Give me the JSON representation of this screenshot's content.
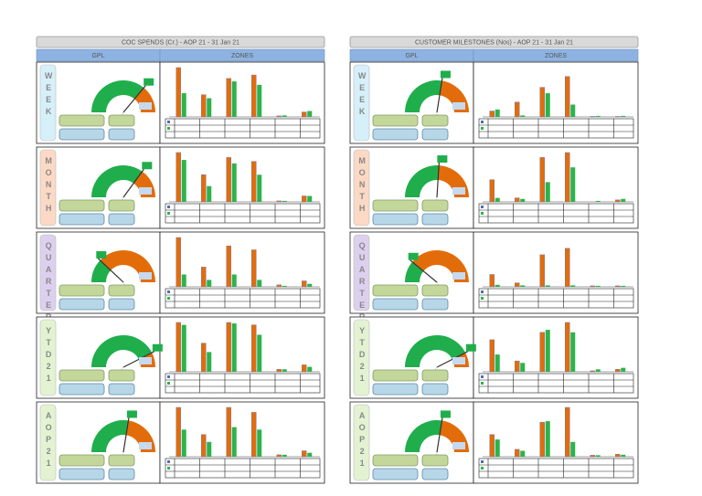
{
  "panels": [
    {
      "title": "COC SPENDS (Cr.) - AOP 21 - 31 Jan 21",
      "headers": [
        "GPL",
        "ZONES"
      ],
      "rows": [
        {
          "label": "WEEK",
          "label_color": "#d6f0fa",
          "gauge": {
            "type": "gauge",
            "value": 72,
            "ylim": [
              0,
              100
            ]
          },
          "zones": {
            "type": "bar",
            "ylim": [
              0,
              100
            ],
            "series": [
              {
                "color": "#e36c0a",
                "values": [
                  100,
                  45,
                  78,
                  85,
                  2,
                  10
                ]
              },
              {
                "color": "#2db34a",
                "values": [
                  48,
                  38,
                  72,
                  65,
                  3,
                  12
                ]
              }
            ]
          }
        },
        {
          "label": "MONTH",
          "label_color": "#fbd9c4",
          "gauge": {
            "type": "gauge",
            "value": 70,
            "ylim": [
              0,
              100
            ]
          },
          "zones": {
            "type": "bar",
            "ylim": [
              0,
              100
            ],
            "series": [
              {
                "color": "#e36c0a",
                "values": [
                  100,
                  55,
                  90,
                  82,
                  2,
                  12
                ]
              },
              {
                "color": "#2db34a",
                "values": [
                  85,
                  32,
                  78,
                  55,
                  2,
                  12
                ]
              }
            ]
          }
        },
        {
          "label": "QUARTER",
          "label_color": "#ddd0ee",
          "gauge": {
            "type": "gauge",
            "value": 24,
            "ylim": [
              0,
              100
            ]
          },
          "zones": {
            "type": "bar",
            "ylim": [
              0,
              100
            ],
            "series": [
              {
                "color": "#e36c0a",
                "values": [
                  100,
                  40,
                  83,
                  75,
                  4,
                  12
                ]
              },
              {
                "color": "#2db34a",
                "values": [
                  25,
                  14,
                  25,
                  14,
                  2,
                  6
                ]
              }
            ]
          }
        },
        {
          "label": "YTD21",
          "label_color": "#e3f3d2",
          "gauge": {
            "type": "gauge",
            "value": 85,
            "ylim": [
              0,
              100
            ]
          },
          "zones": {
            "type": "bar",
            "ylim": [
              0,
              100
            ],
            "series": [
              {
                "color": "#e36c0a",
                "values": [
                  100,
                  58,
                  100,
                  95,
                  5,
                  14
                ]
              },
              {
                "color": "#2db34a",
                "values": [
                  95,
                  40,
                  98,
                  75,
                  5,
                  10
                ]
              }
            ]
          }
        },
        {
          "label": "AOP21",
          "label_color": "#e3f3d2",
          "gauge": {
            "type": "gauge",
            "value": 55,
            "ylim": [
              0,
              100
            ]
          },
          "zones": {
            "type": "bar",
            "ylim": [
              0,
              100
            ],
            "series": [
              {
                "color": "#e36c0a",
                "values": [
                  100,
                  45,
                  100,
                  90,
                  4,
                  12
                ]
              },
              {
                "color": "#2db34a",
                "values": [
                  55,
                  30,
                  60,
                  55,
                  4,
                  8
                ]
              }
            ]
          }
        }
      ]
    },
    {
      "title": "CUSTOMER MILESTONES (Nos) - AOP 21 - 31 Jan 21",
      "headers": [
        "GPL",
        "ZONES"
      ],
      "rows": [
        {
          "label": "WEEK",
          "label_color": "#d6f0fa",
          "gauge": {
            "type": "gauge",
            "value": 55,
            "ylim": [
              0,
              100
            ]
          },
          "zones": {
            "type": "bar",
            "ylim": [
              0,
              100
            ],
            "series": [
              {
                "color": "#e36c0a",
                "values": [
                  12,
                  30,
                  60,
                  82,
                  1,
                  1
                ]
              },
              {
                "color": "#2db34a",
                "values": [
                  15,
                  3,
                  48,
                  25,
                  2,
                  2
                ]
              }
            ]
          }
        },
        {
          "label": "MONTH",
          "label_color": "#fbd9c4",
          "gauge": {
            "type": "gauge",
            "value": 52,
            "ylim": [
              0,
              100
            ]
          },
          "zones": {
            "type": "bar",
            "ylim": [
              0,
              100
            ],
            "series": [
              {
                "color": "#e36c0a",
                "values": [
                  45,
                  8,
                  90,
                  100,
                  0,
                  4
                ]
              },
              {
                "color": "#2db34a",
                "values": [
                  8,
                  6,
                  40,
                  70,
                  2,
                  6
                ]
              }
            ]
          }
        },
        {
          "label": "QUARTER",
          "label_color": "#ddd0ee",
          "gauge": {
            "type": "gauge",
            "value": 22,
            "ylim": [
              0,
              100
            ]
          },
          "zones": {
            "type": "bar",
            "ylim": [
              0,
              100
            ],
            "series": [
              {
                "color": "#e36c0a",
                "values": [
                  25,
                  8,
                  65,
                  78,
                  2,
                  2
                ]
              },
              {
                "color": "#2db34a",
                "values": [
                  4,
                  3,
                  3,
                  3,
                  2,
                  2
                ]
              }
            ]
          }
        },
        {
          "label": "YTD21",
          "label_color": "#e3f3d2",
          "gauge": {
            "type": "gauge",
            "value": 85,
            "ylim": [
              0,
              100
            ]
          },
          "zones": {
            "type": "bar",
            "ylim": [
              0,
              100
            ],
            "series": [
              {
                "color": "#e36c0a",
                "values": [
                  65,
                  22,
                  80,
                  100,
                  2,
                  5
                ]
              },
              {
                "color": "#2db34a",
                "values": [
                  35,
                  18,
                  85,
                  80,
                  5,
                  8
                ]
              }
            ]
          }
        },
        {
          "label": "AOP21",
          "label_color": "#e3f3d2",
          "gauge": {
            "type": "gauge",
            "value": 55,
            "ylim": [
              0,
              100
            ]
          },
          "zones": {
            "type": "bar",
            "ylim": [
              0,
              100
            ],
            "series": [
              {
                "color": "#e36c0a",
                "values": [
                  45,
                  15,
                  70,
                  100,
                  3,
                  5
                ]
              },
              {
                "color": "#2db34a",
                "values": [
                  35,
                  12,
                  72,
                  30,
                  3,
                  4
                ]
              }
            ]
          }
        }
      ]
    }
  ]
}
